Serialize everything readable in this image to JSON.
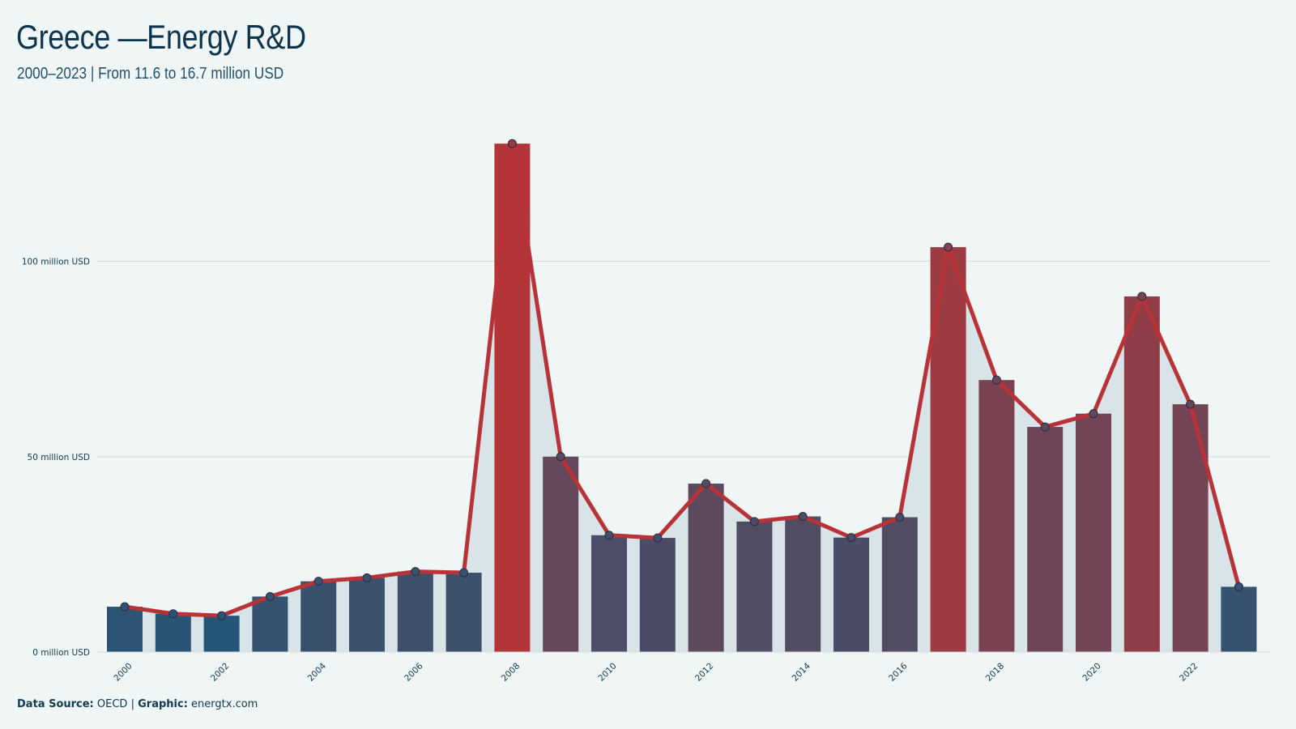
{
  "title": "Greece —Energy R&D",
  "subtitle": "2000–2023 | From 11.6 to 16.7 million USD",
  "source": {
    "label_source": "Data Source:",
    "value_source": "OECD",
    "separator": "|",
    "label_graphic": "Graphic:",
    "value_graphic": "energtx.com"
  },
  "colors": {
    "background": "#f0f5f5",
    "area_fill": "#d9e4e8",
    "line": "#b73338",
    "bar_low": "#265677",
    "bar_high": "#b43537",
    "grid": "#d9e0e3"
  },
  "chart_data": {
    "type": "bar",
    "title": "Greece —Energy R&D",
    "subtitle": "2000–2023 | From 11.6 to 16.7 million USD",
    "xlabel": "",
    "ylabel": "",
    "ylim": [
      0,
      130
    ],
    "y_ticks": [
      0,
      50,
      100
    ],
    "y_tick_labels": [
      "0 million USD",
      "50 million USD",
      "100 million USD"
    ],
    "x_tick_labels": [
      "2000",
      "2002",
      "2004",
      "2006",
      "2008",
      "2010",
      "2012",
      "2014",
      "2016",
      "2018",
      "2020",
      "2022"
    ],
    "categories": [
      "2000",
      "2001",
      "2002",
      "2003",
      "2004",
      "2005",
      "2006",
      "2007",
      "2008",
      "2009",
      "2010",
      "2011",
      "2012",
      "2013",
      "2014",
      "2015",
      "2016",
      "2017",
      "2018",
      "2019",
      "2020",
      "2021",
      "2022",
      "2023"
    ],
    "values": [
      11.6,
      9.8,
      9.3,
      14.2,
      18.1,
      19.0,
      20.6,
      20.3,
      130.1,
      50.0,
      29.9,
      29.2,
      43.1,
      33.4,
      34.7,
      29.3,
      34.5,
      103.6,
      69.6,
      57.6,
      61.0,
      91.0,
      63.4,
      16.7
    ],
    "series": [
      {
        "type": "bar",
        "values": [
          11.6,
          9.8,
          9.3,
          14.2,
          18.1,
          19.0,
          20.6,
          20.3,
          130.1,
          50.0,
          29.9,
          29.2,
          43.1,
          33.4,
          34.7,
          29.3,
          34.5,
          103.6,
          69.6,
          57.6,
          61.0,
          91.0,
          63.4,
          16.7
        ]
      },
      {
        "type": "line",
        "values": [
          11.6,
          9.8,
          9.3,
          14.2,
          18.1,
          19.0,
          20.6,
          20.3,
          130.1,
          50.0,
          29.9,
          29.2,
          43.1,
          33.4,
          34.7,
          29.3,
          34.5,
          103.6,
          69.6,
          57.6,
          61.0,
          91.0,
          63.4,
          16.7
        ]
      },
      {
        "type": "area",
        "values": [
          11.6,
          9.8,
          9.3,
          14.2,
          18.1,
          19.0,
          20.6,
          20.3,
          130.1,
          50.0,
          29.9,
          29.2,
          43.1,
          33.4,
          34.7,
          29.3,
          34.5,
          103.6,
          69.6,
          57.6,
          61.0,
          91.0,
          63.4,
          16.7
        ]
      }
    ],
    "grid": true,
    "legend": "none"
  }
}
